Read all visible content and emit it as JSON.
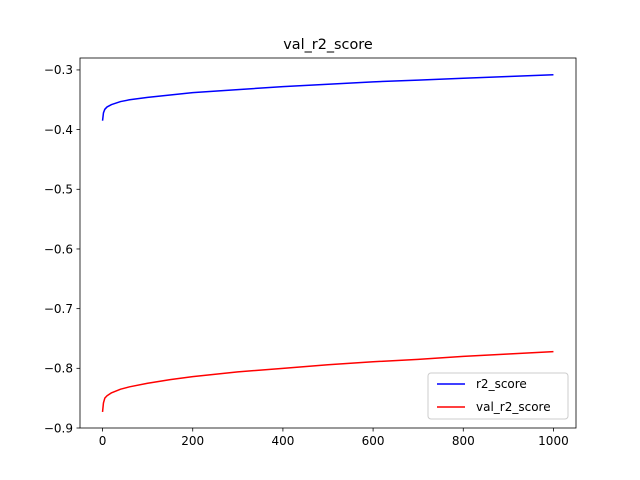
{
  "chart_data": {
    "type": "line",
    "title": "val_r2_score",
    "xlabel": "",
    "ylabel": "",
    "xlim": [
      -50,
      1050
    ],
    "ylim": [
      -0.9,
      -0.28
    ],
    "xticks": [
      0,
      200,
      400,
      600,
      800,
      1000
    ],
    "xtick_labels": [
      "0",
      "200",
      "400",
      "600",
      "800",
      "1000"
    ],
    "yticks": [
      -0.3,
      -0.4,
      -0.5,
      -0.6,
      -0.7,
      -0.8,
      -0.9
    ],
    "ytick_labels": [
      "−0.3",
      "−0.4",
      "−0.5",
      "−0.6",
      "−0.7",
      "−0.8",
      "−0.9"
    ],
    "grid": false,
    "legend_position": "lower-right",
    "series": [
      {
        "name": "r2_score",
        "color": "#0000ff",
        "x": [
          0,
          2,
          5,
          10,
          20,
          40,
          60,
          100,
          150,
          200,
          300,
          400,
          500,
          600,
          700,
          800,
          900,
          1000
        ],
        "y": [
          -0.385,
          -0.372,
          -0.366,
          -0.362,
          -0.358,
          -0.353,
          -0.35,
          -0.346,
          -0.342,
          -0.338,
          -0.333,
          -0.328,
          -0.324,
          -0.32,
          -0.317,
          -0.314,
          -0.311,
          -0.308
        ]
      },
      {
        "name": "val_r2_score",
        "color": "#ff0000",
        "x": [
          0,
          2,
          5,
          10,
          20,
          40,
          60,
          100,
          150,
          200,
          300,
          400,
          500,
          600,
          700,
          800,
          900,
          1000
        ],
        "y": [
          -0.873,
          -0.858,
          -0.85,
          -0.846,
          -0.841,
          -0.835,
          -0.831,
          -0.825,
          -0.819,
          -0.814,
          -0.806,
          -0.8,
          -0.794,
          -0.789,
          -0.785,
          -0.78,
          -0.776,
          -0.772
        ]
      }
    ]
  }
}
